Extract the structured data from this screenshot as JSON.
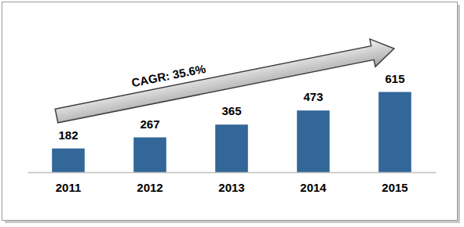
{
  "chart_data": {
    "type": "bar",
    "annotation": "CAGR: 35.6%",
    "categories": [
      "2011",
      "2012",
      "2013",
      "2014",
      "2015"
    ],
    "values": [
      182,
      267,
      365,
      473,
      615
    ],
    "color": "#336699",
    "ylim": [
      0,
      1200
    ],
    "data_labels": true,
    "tick_labels": "x"
  }
}
